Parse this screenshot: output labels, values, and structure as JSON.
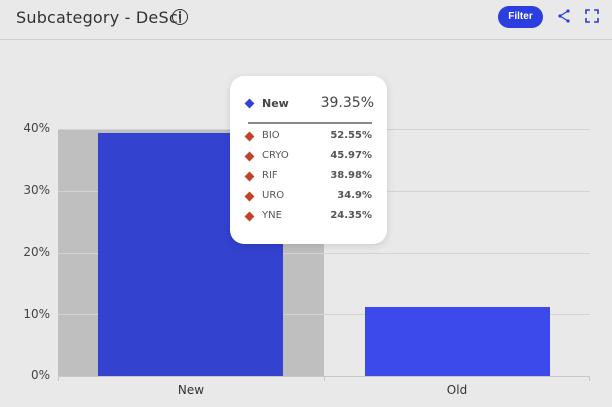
{
  "header": {
    "title": "Subcategory - DeSci",
    "info_icon": "info-circle-icon",
    "filter_label": "Filter",
    "share_icon": "share-icon",
    "expand_icon": "fullscreen-icon"
  },
  "colors": {
    "accent": "#2b3ee0",
    "bar_new": "#3342cf",
    "bar_old": "#3d4aeb",
    "tooltip_sub_marker": "#c0432b",
    "hover_band": "#bfbfbf"
  },
  "chart_data": {
    "type": "bar",
    "title": "Subcategory - DeSci",
    "xlabel": "",
    "ylabel": "",
    "categories": [
      "New",
      "Old"
    ],
    "values": [
      39.35,
      11.2
    ],
    "ylim": [
      0,
      40
    ],
    "yticks": [
      "0%",
      "10%",
      "20%",
      "30%",
      "40%"
    ],
    "grid": true,
    "legend": "none",
    "hovered_category": "New",
    "tooltip": {
      "series_label": "New",
      "series_value": "39.35%",
      "breakdown": [
        {
          "label": "BIO",
          "value": "52.55%"
        },
        {
          "label": "CRYO",
          "value": "45.97%"
        },
        {
          "label": "RIF",
          "value": "38.98%"
        },
        {
          "label": "URO",
          "value": "34.9%"
        },
        {
          "label": "YNE",
          "value": "24.35%"
        }
      ]
    }
  }
}
